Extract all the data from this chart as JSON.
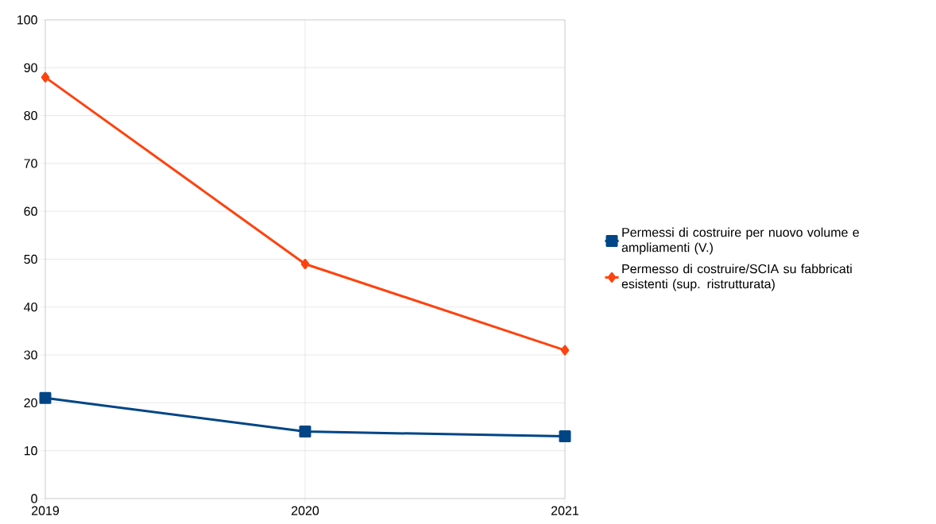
{
  "chart_data": {
    "type": "line",
    "categories": [
      "2019",
      "2020",
      "2021"
    ],
    "series": [
      {
        "name": "Permessi di costruire per nuovo volume e ampliamenti (V.)",
        "color": "#004586",
        "values": [
          21,
          14,
          13
        ],
        "marker": "square"
      },
      {
        "name": "Permesso di costruire/SCIA su fabbricati esistenti (sup. ristrutturata)",
        "color": "#ff420e",
        "values": [
          88,
          49,
          31
        ],
        "marker": "diamond"
      }
    ],
    "ylim": [
      0,
      100
    ],
    "yticks": [
      0,
      10,
      20,
      30,
      40,
      50,
      60,
      70,
      80,
      90,
      100
    ],
    "grid": true,
    "legend": "right"
  }
}
